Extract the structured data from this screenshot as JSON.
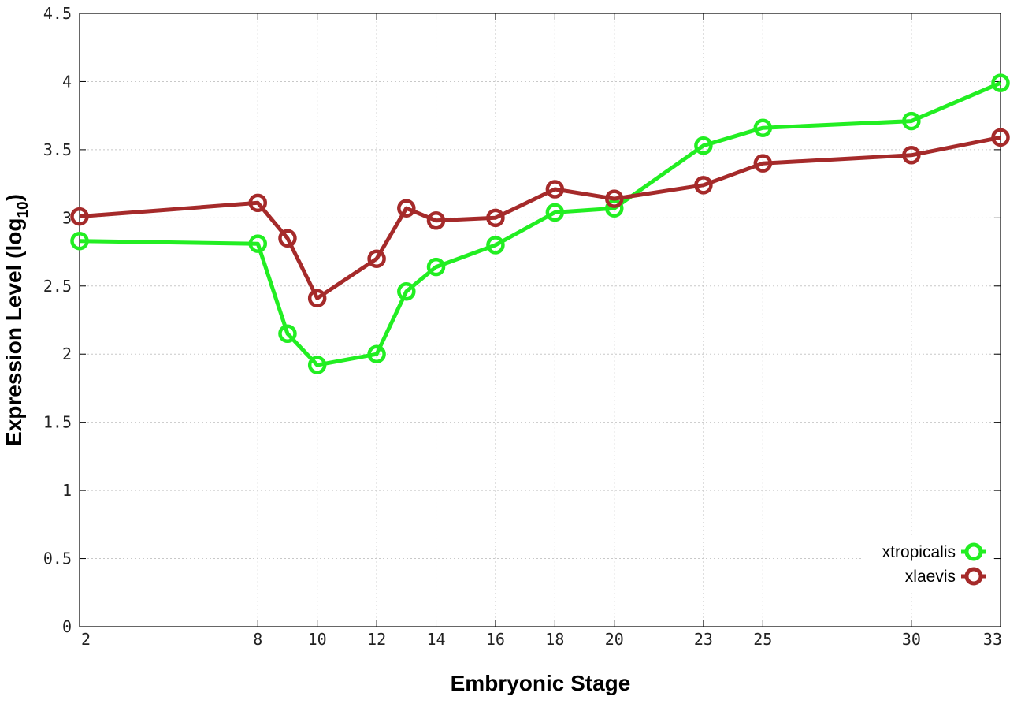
{
  "chart_data": {
    "type": "line",
    "xlabel": "Embryonic Stage",
    "ylabel": "Expression Level (log",
    "ylabel_sub": "10",
    "ylabel_tail": ")",
    "ylim": [
      0,
      4.5
    ],
    "xlim": [
      2,
      33
    ],
    "x_ticks": [
      2,
      8,
      10,
      12,
      14,
      16,
      18,
      20,
      23,
      25,
      30,
      33
    ],
    "y_ticks": [
      0,
      0.5,
      1,
      1.5,
      2,
      2.5,
      3,
      3.5,
      4,
      4.5
    ],
    "y_tick_labels": [
      "0",
      "0.5",
      "1",
      "1.5",
      "2",
      "2.5",
      "3",
      "3.5",
      "4",
      "4.5"
    ],
    "grid": true,
    "legend_position": "bottom-right",
    "x": [
      2,
      8,
      9,
      10,
      12,
      13,
      14,
      16,
      18,
      20,
      23,
      25,
      30,
      33
    ],
    "series": [
      {
        "name": "xtropicalis",
        "color": "#22ee22",
        "values": [
          2.83,
          2.81,
          2.15,
          1.92,
          2.0,
          2.46,
          2.64,
          2.8,
          3.04,
          3.07,
          3.53,
          3.66,
          3.71,
          3.99
        ]
      },
      {
        "name": "xlaevis",
        "color": "#a52a2a",
        "values": [
          3.01,
          3.11,
          2.85,
          2.41,
          2.7,
          3.07,
          2.98,
          3.0,
          3.21,
          3.14,
          3.24,
          3.4,
          3.46,
          3.59
        ]
      }
    ]
  }
}
